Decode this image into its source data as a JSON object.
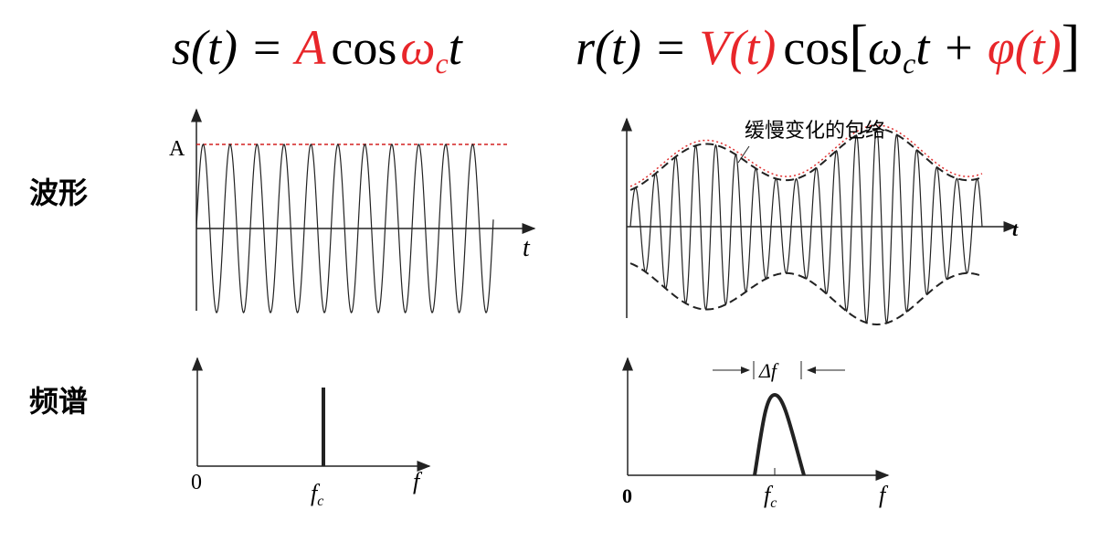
{
  "formulas": {
    "carrier": {
      "lhs": "s(t) =",
      "amplitude": "A",
      "func": "cos",
      "omega": "ω",
      "sub": "c",
      "var": "t"
    },
    "modulated": {
      "lhs": "r(t) =",
      "envelope": "V(t)",
      "func": "cos",
      "open": "[",
      "omega": "ω",
      "sub": "c",
      "var": "t +",
      "phase": "φ(t)",
      "close": "]"
    }
  },
  "rows": {
    "waveform": "波形",
    "spectrum": "频谱"
  },
  "carrier_wave": {
    "amp_label": "A",
    "x_label": "t"
  },
  "modulated_wave": {
    "envelope_label": "缓慢变化的包络",
    "x_label": "t"
  },
  "carrier_spectrum": {
    "origin": "0",
    "fc_symbol": "f",
    "fc_sub": "c",
    "x_label": "f"
  },
  "modulated_spectrum": {
    "bandwidth": "Δf",
    "origin": "0",
    "fc_symbol": "f",
    "fc_sub": "c",
    "x_label": "f"
  }
}
